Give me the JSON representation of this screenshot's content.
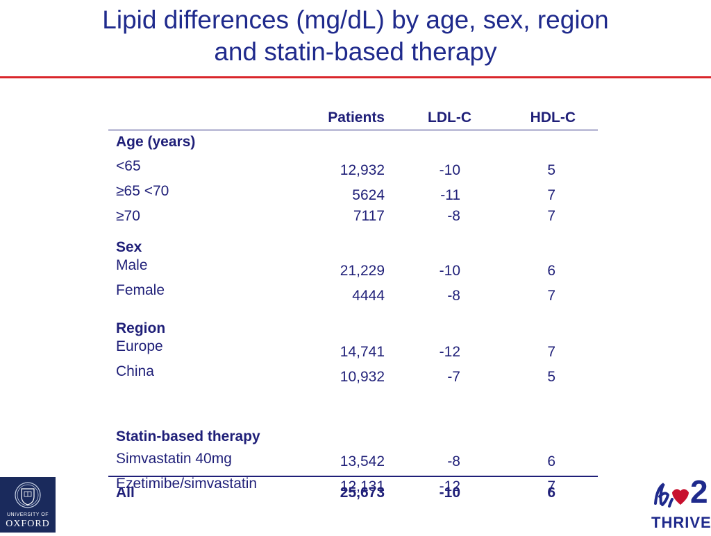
{
  "title_line1": "Lipid differences (mg/dL) by age, sex, region",
  "title_line2": "and statin-based therapy",
  "columns": {
    "patients": "Patients",
    "ldl": "LDL-C",
    "hdl": "HDL-C"
  },
  "groups": [
    {
      "name": "Age (years)",
      "rows": [
        {
          "label": "<65",
          "patients": "12,932",
          "ldl": "-10",
          "hdl": "5"
        },
        {
          "label": "≥65 <70",
          "patients": "5624",
          "ldl": "-11",
          "hdl": "7"
        },
        {
          "label": "≥70",
          "patients": "7117",
          "ldl": "-8",
          "hdl": "7"
        }
      ]
    },
    {
      "name": "Sex",
      "rows": [
        {
          "label": "Male",
          "patients": "21,229",
          "ldl": "-10",
          "hdl": "6"
        },
        {
          "label": "Female",
          "patients": "4444",
          "ldl": "-8",
          "hdl": "7"
        }
      ]
    },
    {
      "name": "Region",
      "rows": [
        {
          "label": "Europe",
          "patients": "14,741",
          "ldl": "-12",
          "hdl": "7"
        },
        {
          "label": "China",
          "patients": "10,932",
          "ldl": "-7",
          "hdl": "5"
        }
      ]
    },
    {
      "name": "Statin-based therapy",
      "rows": [
        {
          "label": "Simvastatin 40mg",
          "patients": "13,542",
          "ldl": "-8",
          "hdl": "6"
        },
        {
          "label": "Ezetimibe/simvastatin",
          "patients": "12,131",
          "ldl": "-12",
          "hdl": "7"
        }
      ]
    }
  ],
  "total": {
    "label": "All",
    "patients": "25,673",
    "ldl": "-10",
    "hdl": "6"
  },
  "logos": {
    "oxford_line1": "UNIVERSITY OF",
    "oxford_line2": "OXFORD",
    "thrive_text": "THRIVE",
    "thrive_number": "2",
    "thrive_brand_color": "#c8102e"
  }
}
